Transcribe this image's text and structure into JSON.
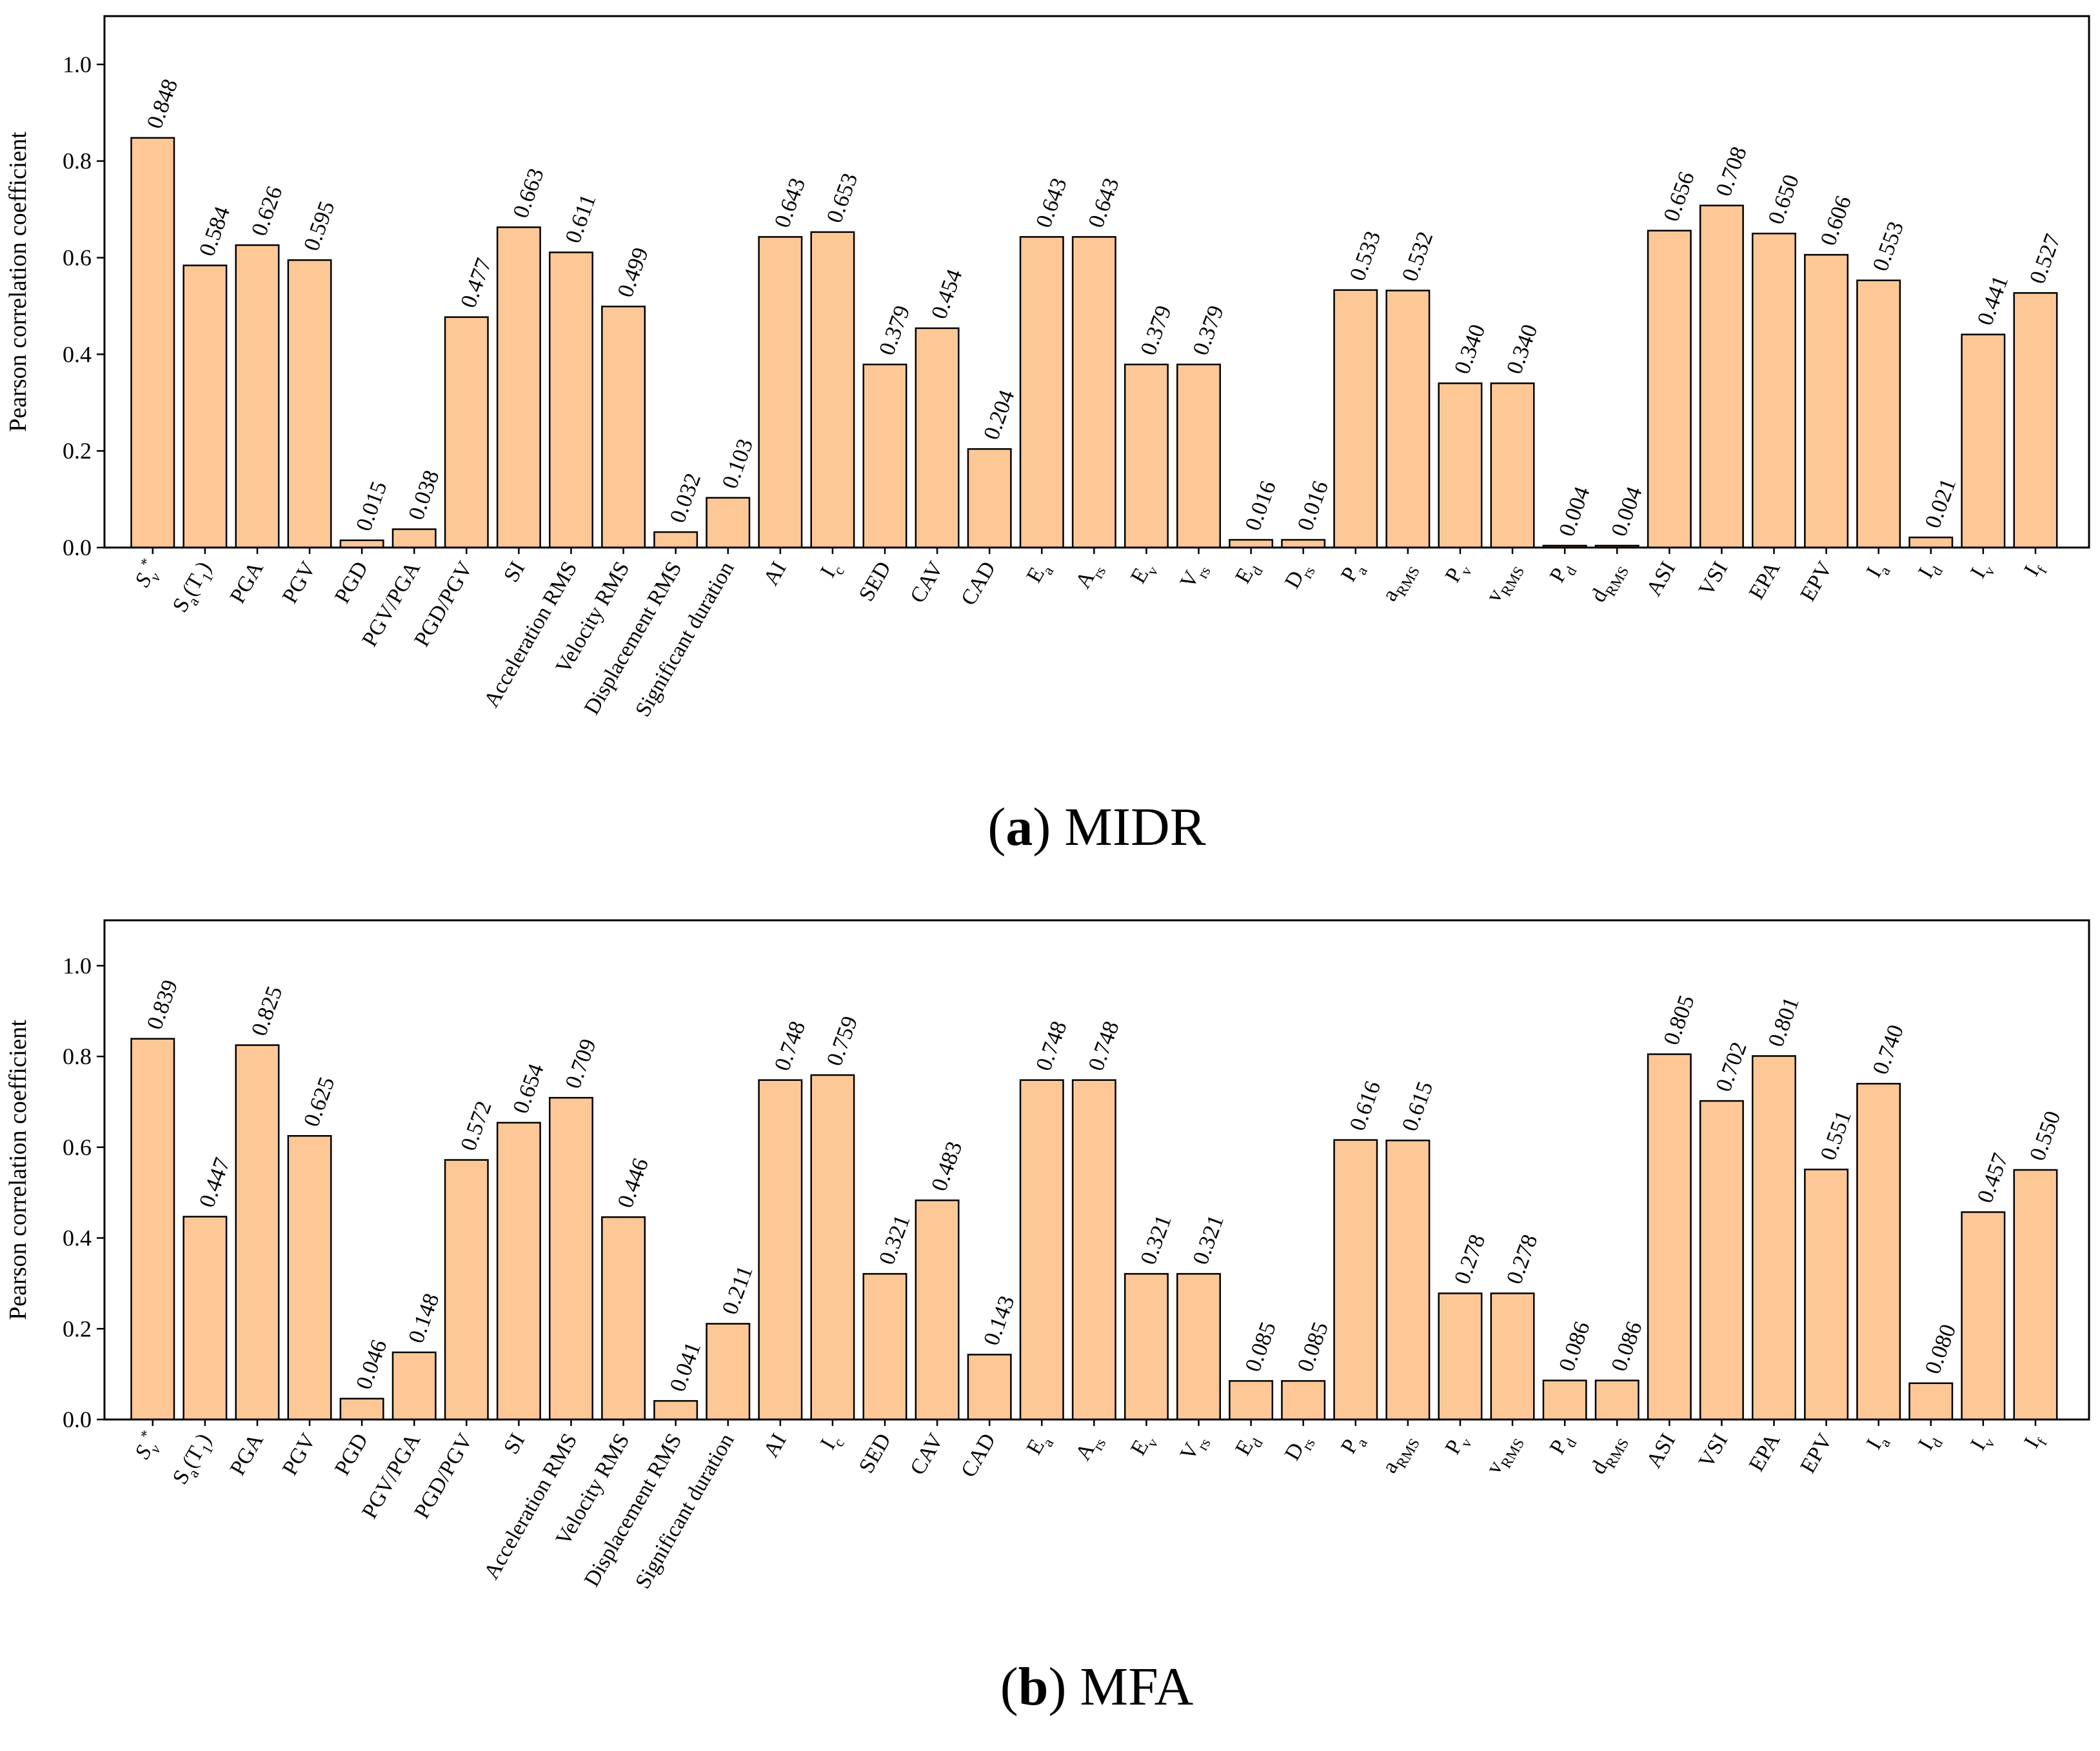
{
  "chart_data": [
    {
      "type": "bar",
      "caption": [
        "(",
        {
          "bold": "a"
        },
        ") MIDR"
      ],
      "y_label": "Pearson correlation coefficient",
      "categories": [
        [
          "S",
          {
            "sub": "v"
          },
          {
            "sup": "*"
          }
        ],
        [
          "S",
          {
            "sub": "a"
          },
          "(T",
          {
            "sub": "1"
          },
          ")"
        ],
        [
          "PGA"
        ],
        [
          "PGV"
        ],
        [
          "PGD"
        ],
        [
          "PGV/PGA"
        ],
        [
          "PGD/PGV"
        ],
        [
          "SI"
        ],
        [
          "Acceleration RMS"
        ],
        [
          "Velocity RMS"
        ],
        [
          "Displacement RMS"
        ],
        [
          "Significant duration"
        ],
        [
          "AI"
        ],
        [
          "I",
          {
            "sub": "c"
          }
        ],
        [
          "SED"
        ],
        [
          "CAV"
        ],
        [
          "CAD"
        ],
        [
          "E",
          {
            "sub": "a"
          }
        ],
        [
          "A",
          {
            "sub": "rs"
          }
        ],
        [
          "E",
          {
            "sub": "v"
          }
        ],
        [
          "V",
          {
            "sub": "rs"
          }
        ],
        [
          "E",
          {
            "sub": "d"
          }
        ],
        [
          "D",
          {
            "sub": "rs"
          }
        ],
        [
          "P",
          {
            "sub": "a"
          }
        ],
        [
          "a",
          {
            "sub": "RMS"
          }
        ],
        [
          "P",
          {
            "sub": "v"
          }
        ],
        [
          "v",
          {
            "sub": "RMS"
          }
        ],
        [
          "P",
          {
            "sub": "d"
          }
        ],
        [
          "d",
          {
            "sub": "RMS"
          }
        ],
        [
          "ASI"
        ],
        [
          "VSI"
        ],
        [
          "EPA"
        ],
        [
          "EPV"
        ],
        [
          "I",
          {
            "sub": "a"
          }
        ],
        [
          "I",
          {
            "sub": "d"
          }
        ],
        [
          "I",
          {
            "sub": "v"
          }
        ],
        [
          "I",
          {
            "sub": "f"
          }
        ]
      ],
      "values": [
        0.848,
        0.584,
        0.626,
        0.595,
        0.015,
        0.038,
        0.477,
        0.663,
        0.611,
        0.499,
        0.032,
        0.103,
        0.643,
        0.653,
        0.379,
        0.454,
        0.204,
        0.643,
        0.643,
        0.379,
        0.379,
        0.016,
        0.016,
        0.533,
        0.532,
        0.34,
        0.34,
        0.004,
        0.004,
        0.656,
        0.708,
        0.65,
        0.606,
        0.553,
        0.021,
        0.441,
        0.527
      ],
      "value_labels": [
        "0.848",
        "0.584",
        "0.626",
        "0.595",
        "0.015",
        "0.038",
        "0.477",
        "0.663",
        "0.611",
        "0.499",
        "0.032",
        "0.103",
        "0.643",
        "0.653",
        "0.379",
        "0.454",
        "0.204",
        "0.643",
        "0.643",
        "0.379",
        "0.379",
        "0.016",
        "0.016",
        "0.533",
        "0.532",
        "0.340",
        "0.340",
        "0.004",
        "0.004",
        "0.656",
        "0.708",
        "0.650",
        "0.606",
        "0.553",
        "0.021",
        "0.441",
        "0.527"
      ],
      "color": "#fdc896",
      "highlight": {
        "category": 0,
        "color": "#ff0000"
      },
      "ylim": [
        0,
        1.1
      ],
      "yticks": [
        {
          "value": 0,
          "label": "0.0"
        },
        0.2,
        0.4,
        0.6,
        0.8,
        {
          "value": 1,
          "label": "1.0"
        }
      ]
    },
    {
      "type": "bar",
      "caption": [
        "(",
        {
          "bold": "b"
        },
        ") MFA"
      ],
      "y_label": "Pearson correlation coefficient",
      "categories": [
        [
          "S",
          {
            "sub": "v"
          },
          {
            "sup": "*"
          }
        ],
        [
          "S",
          {
            "sub": "a"
          },
          "(T",
          {
            "sub": "1"
          },
          ")"
        ],
        [
          "PGA"
        ],
        [
          "PGV"
        ],
        [
          "PGD"
        ],
        [
          "PGV/PGA"
        ],
        [
          "PGD/PGV"
        ],
        [
          "SI"
        ],
        [
          "Acceleration RMS"
        ],
        [
          "Velocity RMS"
        ],
        [
          "Displacement RMS"
        ],
        [
          "Significant duration"
        ],
        [
          "AI"
        ],
        [
          "I",
          {
            "sub": "c"
          }
        ],
        [
          "SED"
        ],
        [
          "CAV"
        ],
        [
          "CAD"
        ],
        [
          "E",
          {
            "sub": "a"
          }
        ],
        [
          "A",
          {
            "sub": "rs"
          }
        ],
        [
          "E",
          {
            "sub": "v"
          }
        ],
        [
          "V",
          {
            "sub": "rs"
          }
        ],
        [
          "E",
          {
            "sub": "d"
          }
        ],
        [
          "D",
          {
            "sub": "rs"
          }
        ],
        [
          "P",
          {
            "sub": "a"
          }
        ],
        [
          "a",
          {
            "sub": "RMS"
          }
        ],
        [
          "P",
          {
            "sub": "v"
          }
        ],
        [
          "v",
          {
            "sub": "RMS"
          }
        ],
        [
          "P",
          {
            "sub": "d"
          }
        ],
        [
          "d",
          {
            "sub": "RMS"
          }
        ],
        [
          "ASI"
        ],
        [
          "VSI"
        ],
        [
          "EPA"
        ],
        [
          "EPV"
        ],
        [
          "I",
          {
            "sub": "a"
          }
        ],
        [
          "I",
          {
            "sub": "d"
          }
        ],
        [
          "I",
          {
            "sub": "v"
          }
        ],
        [
          "I",
          {
            "sub": "f"
          }
        ]
      ],
      "values": [
        0.839,
        0.447,
        0.825,
        0.625,
        0.046,
        0.148,
        0.572,
        0.654,
        0.709,
        0.446,
        0.041,
        0.211,
        0.748,
        0.759,
        0.321,
        0.483,
        0.143,
        0.748,
        0.748,
        0.321,
        0.321,
        0.085,
        0.085,
        0.616,
        0.615,
        0.278,
        0.278,
        0.086,
        0.086,
        0.805,
        0.702,
        0.801,
        0.551,
        0.74,
        0.08,
        0.457,
        0.55
      ],
      "value_labels": [
        "0.839",
        "0.447",
        "0.825",
        "0.625",
        "0.046",
        "0.148",
        "0.572",
        "0.654",
        "0.709",
        "0.446",
        "0.041",
        "0.211",
        "0.748",
        "0.759",
        "0.321",
        "0.483",
        "0.143",
        "0.748",
        "0.748",
        "0.321",
        "0.321",
        "0.085",
        "0.085",
        "0.616",
        "0.615",
        "0.278",
        "0.278",
        "0.086",
        "0.086",
        "0.805",
        "0.702",
        "0.801",
        "0.551",
        "0.740",
        "0.080",
        "0.457",
        "0.550"
      ],
      "color": "#fdc896",
      "highlight": {
        "category": 0,
        "color": "#ff0000"
      },
      "ylim": [
        0,
        1.1
      ],
      "yticks": [
        {
          "value": 0,
          "label": "0.0"
        },
        0.2,
        0.4,
        0.6,
        0.8,
        {
          "value": 1,
          "label": "1.0"
        }
      ]
    }
  ]
}
